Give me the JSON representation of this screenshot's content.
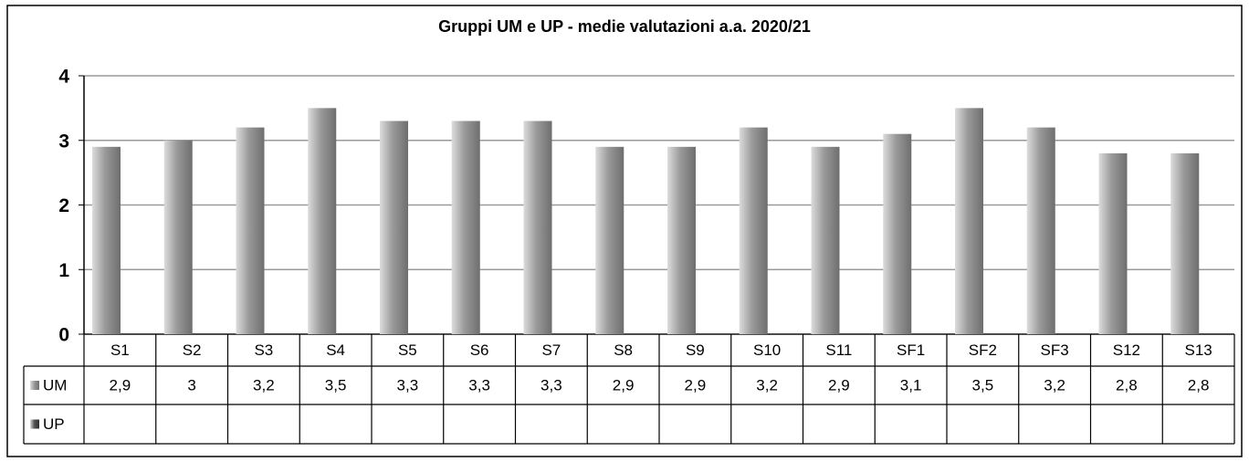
{
  "chart_data": {
    "type": "bar",
    "title": "Gruppi UM e UP - medie valutazioni a.a. 2020/21",
    "categories": [
      "S1",
      "S2",
      "S3",
      "S4",
      "S5",
      "S6",
      "S7",
      "S8",
      "S9",
      "S10",
      "S11",
      "SF1",
      "SF2",
      "SF3",
      "S12",
      "S13"
    ],
    "series": [
      {
        "name": "UM",
        "color": "#9a9a9a",
        "values": [
          2.9,
          3,
          3.2,
          3.5,
          3.3,
          3.3,
          3.3,
          2.9,
          2.9,
          3.2,
          2.9,
          3.1,
          3.5,
          3.2,
          2.8,
          2.8
        ],
        "value_labels": [
          "2,9",
          "3",
          "3,2",
          "3,5",
          "3,3",
          "3,3",
          "3,3",
          "2,9",
          "2,9",
          "3,2",
          "2,9",
          "3,1",
          "3,5",
          "3,2",
          "2,8",
          "2,8"
        ]
      },
      {
        "name": "UP",
        "color": "#555555",
        "values": [
          null,
          null,
          null,
          null,
          null,
          null,
          null,
          null,
          null,
          null,
          null,
          null,
          null,
          null,
          null,
          null
        ]
      }
    ],
    "ylim": [
      0,
      4
    ],
    "yticks": [
      0,
      1,
      2,
      3,
      4
    ],
    "grid": true
  }
}
